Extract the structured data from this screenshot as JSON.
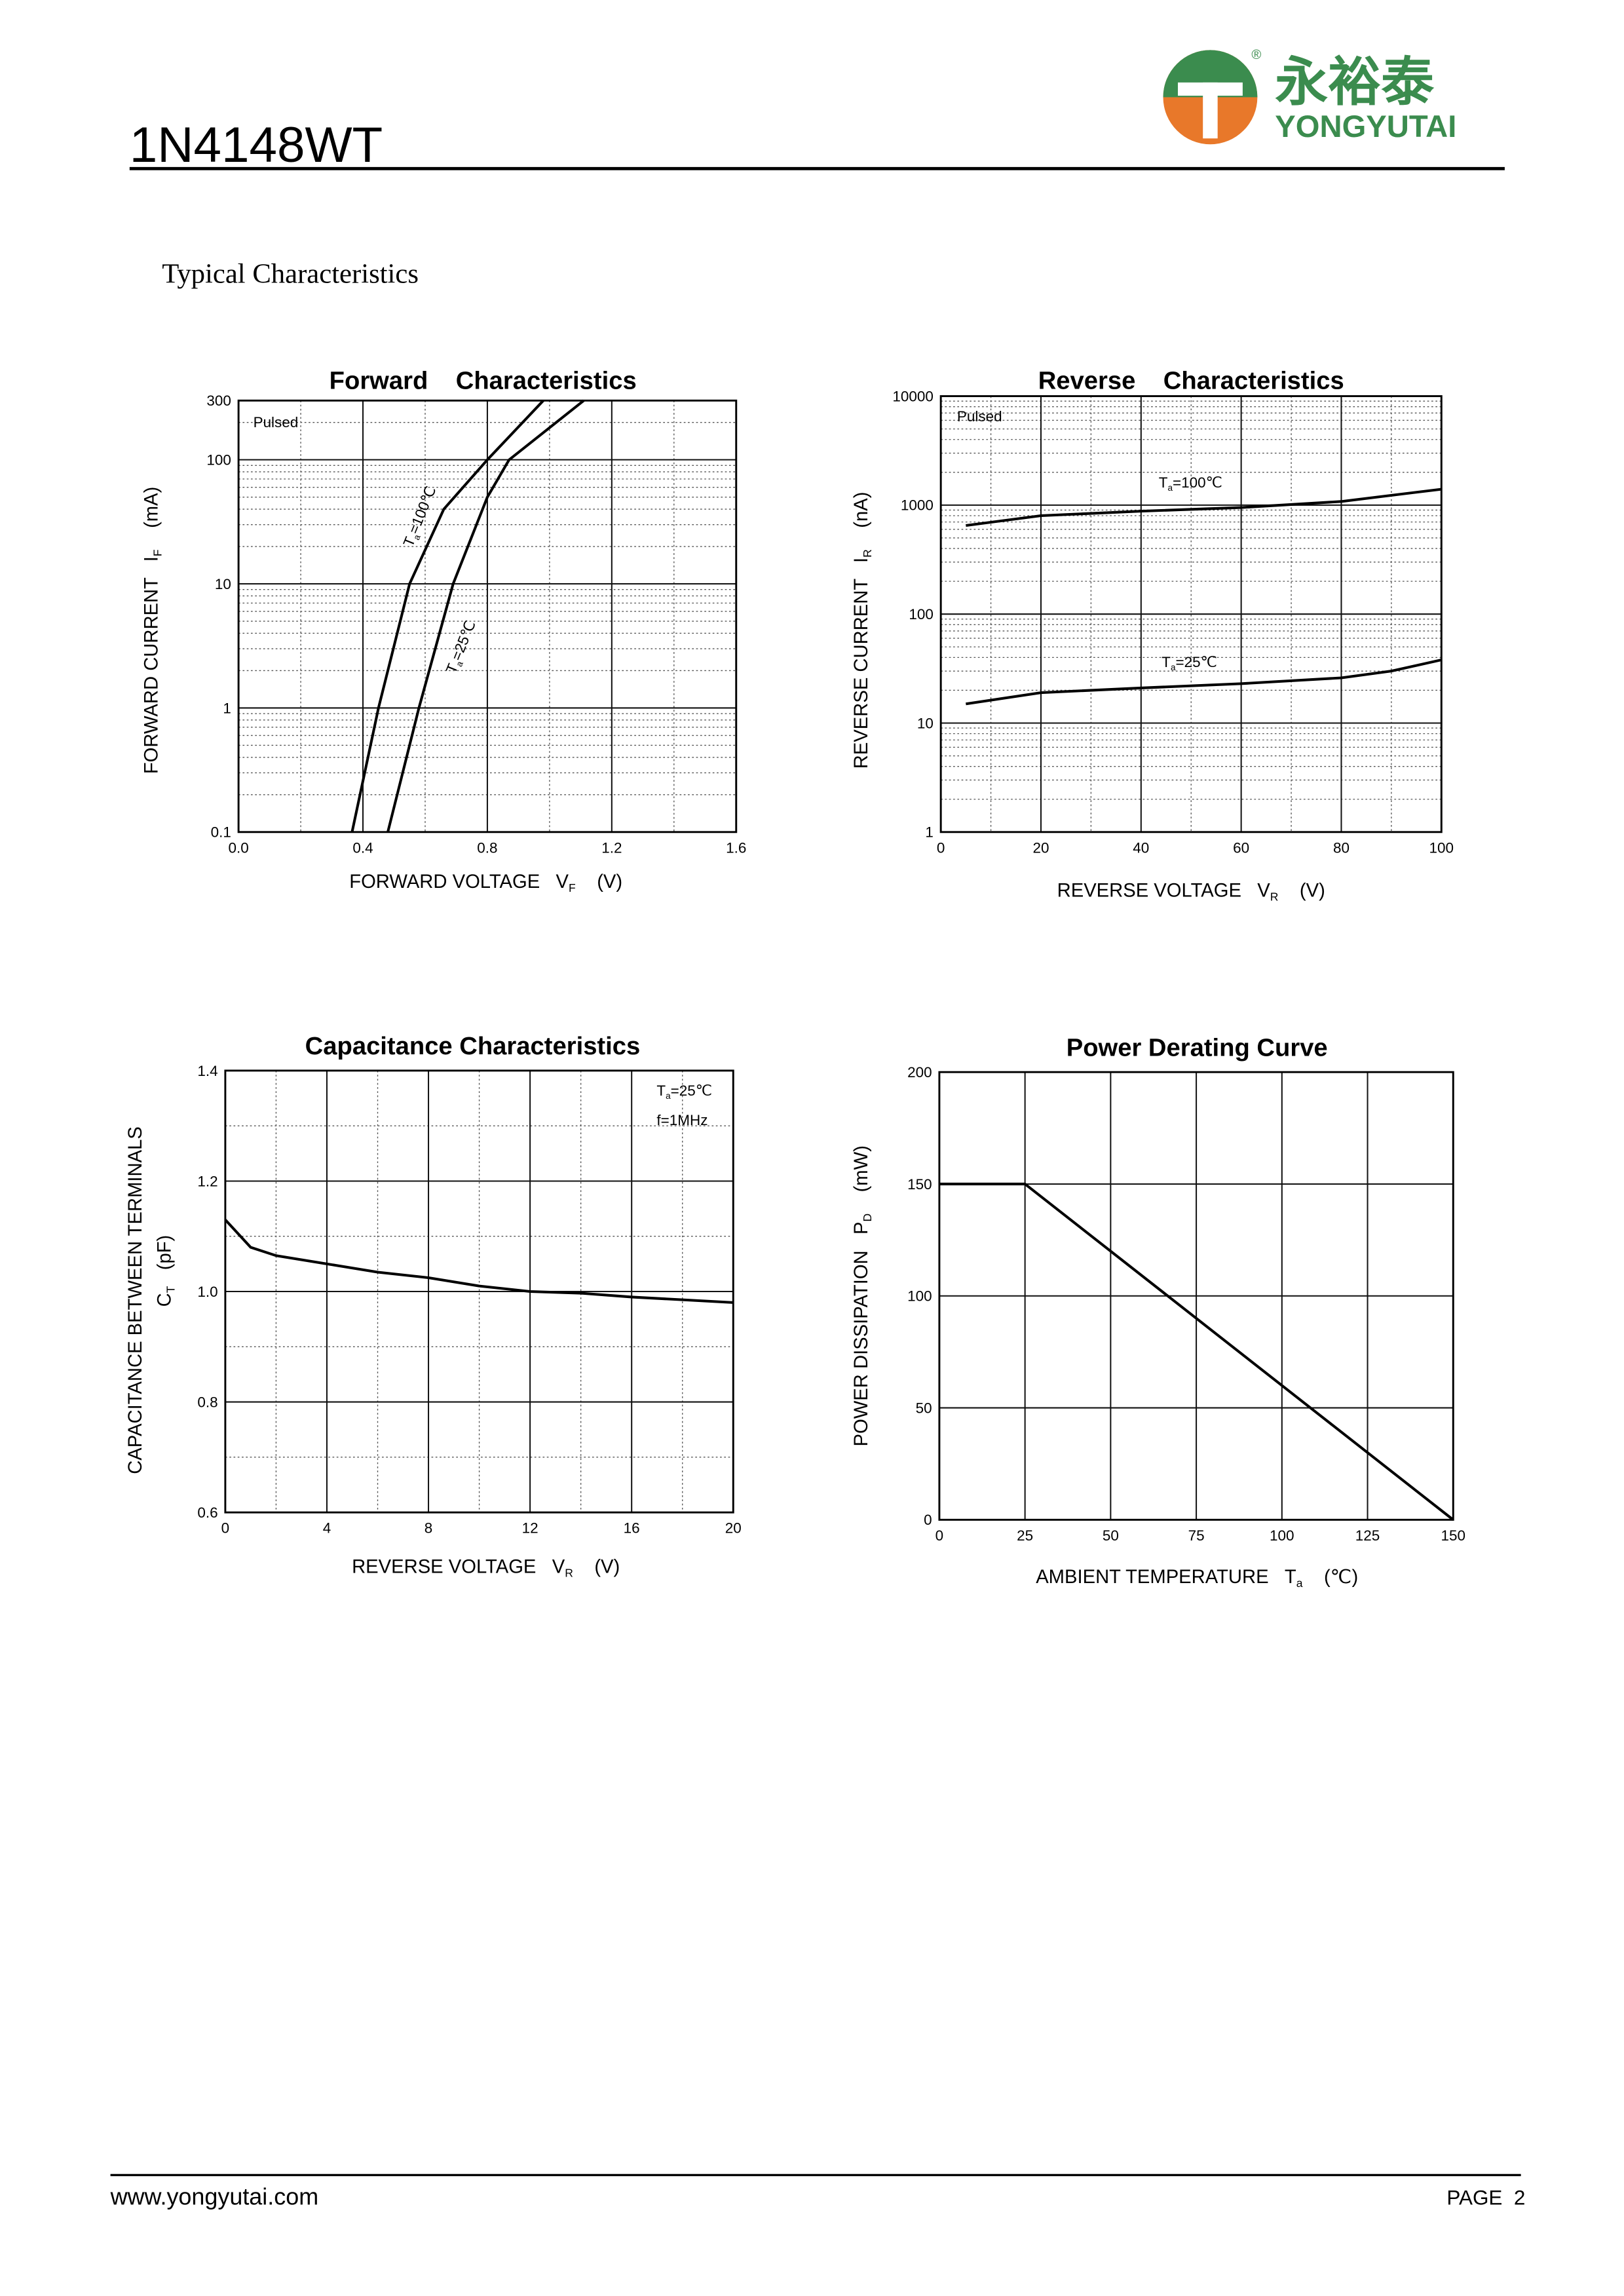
{
  "header": {
    "part": "1N4148WT",
    "brand_cn": "永裕泰",
    "brand_en": "YONGYUTAI",
    "reg": "®"
  },
  "section_title": "Typical Characteristics",
  "chart_data": [
    {
      "type": "line",
      "title": "Forward    Characteristics",
      "x_label": {
        "text": "FORWARD VOLTAGE   ",
        "symbol": "V",
        "sub": "F",
        "unit": "    (V)"
      },
      "y_label": {
        "text": "FORWARD CURRENT   ",
        "symbol": "I",
        "sub": "F",
        "unit": "    (mA)"
      },
      "xlim": [
        0,
        1.6
      ],
      "xticks": [
        {
          "value": 0,
          "label": "0.0"
        },
        0.4,
        0.8,
        1.2,
        1.6
      ],
      "ylim": [
        0.1,
        300
      ],
      "yticks": [
        0.1,
        1,
        10,
        100,
        300
      ],
      "ylog": true,
      "grid": true,
      "minor_grid": true,
      "annotations": [
        {
          "text": "Pulsed"
        },
        {
          "symbol": "T",
          "sub": "a",
          "text": "=100℃"
        },
        {
          "symbol": "T",
          "sub": "a",
          "text": "=25℃"
        }
      ],
      "series": [
        {
          "name": "Ta=100℃",
          "color": "#000000",
          "x": [
            0.365,
            0.45,
            0.55,
            0.66,
            0.8,
            0.98
          ],
          "values": [
            0.1,
            1,
            10,
            40,
            100,
            300
          ]
        },
        {
          "name": "Ta=25℃",
          "color": "#000000",
          "x": [
            0.48,
            0.58,
            0.69,
            0.8,
            0.87,
            1.11
          ],
          "values": [
            0.1,
            1,
            10,
            50,
            100,
            300
          ]
        }
      ]
    },
    {
      "type": "line",
      "title": "Reverse    Characteristics",
      "x_label": {
        "text": "REVERSE VOLTAGE   ",
        "symbol": "V",
        "sub": "R",
        "unit": "    (V)"
      },
      "y_label": {
        "text": "REVERSE CURRENT   ",
        "symbol": "I",
        "sub": "R",
        "unit": "    (nA)"
      },
      "xlim": [
        0,
        100
      ],
      "xticks": [
        0,
        20,
        40,
        60,
        80,
        100
      ],
      "ylim": [
        1,
        10000
      ],
      "yticks": [
        1,
        10,
        100,
        1000,
        10000
      ],
      "ylog": true,
      "grid": true,
      "minor_grid": true,
      "annotations": [
        {
          "text": "Pulsed"
        },
        {
          "symbol": "T",
          "sub": "a",
          "text": "=100℃"
        },
        {
          "symbol": "T",
          "sub": "a",
          "text": "=25℃"
        }
      ],
      "series": [
        {
          "name": "Ta=100℃",
          "color": "#000000",
          "x": [
            5,
            20,
            40,
            60,
            80,
            100
          ],
          "values": [
            650,
            800,
            880,
            950,
            1080,
            1400
          ]
        },
        {
          "name": "Ta=25℃",
          "color": "#000000",
          "x": [
            5,
            20,
            40,
            60,
            80,
            90,
            100
          ],
          "values": [
            15,
            19,
            21,
            23,
            26,
            30,
            38
          ]
        }
      ]
    },
    {
      "type": "line",
      "title": "Capacitance Characteristics",
      "x_label": {
        "text": "REVERSE VOLTAGE   ",
        "symbol": "V",
        "sub": "R",
        "unit": "    (V)"
      },
      "y_label": {
        "text": "CAPACITANCE BETWEEN TERMINALS",
        "symbol": "C",
        "sub": "T",
        "unit": "   (pF)"
      },
      "xlim": [
        0,
        20
      ],
      "xticks": [
        0,
        4,
        8,
        12,
        16,
        20
      ],
      "ylim": [
        0.6,
        1.4
      ],
      "yticks": [
        0.6,
        0.8,
        {
          "value": 1,
          "label": "1.0"
        },
        1.2,
        1.4
      ],
      "ylog": false,
      "grid": true,
      "minor_grid": true,
      "annotations": [
        {
          "symbol": "T",
          "sub": "a",
          "text": "=25℃"
        },
        {
          "text": "f=1MHz"
        }
      ],
      "series": [
        {
          "name": "CT",
          "color": "#000000",
          "x": [
            0,
            1,
            2,
            4,
            6,
            8,
            10,
            12,
            14,
            16,
            18,
            20
          ],
          "values": [
            1.13,
            1.08,
            1.065,
            1.05,
            1.035,
            1.025,
            1.01,
            1.0,
            0.997,
            0.99,
            0.985,
            0.98
          ]
        }
      ]
    },
    {
      "type": "line",
      "title": "Power Derating Curve",
      "x_label": {
        "text": "AMBIENT TEMPERATURE   ",
        "symbol": "T",
        "sub": "a",
        "unit": "    (℃)"
      },
      "y_label": {
        "text": "POWER DISSIPATION   ",
        "symbol": "P",
        "sub": "D",
        "unit": "    (mW)"
      },
      "xlim": [
        0,
        150
      ],
      "xticks": [
        0,
        25,
        50,
        75,
        100,
        125,
        150
      ],
      "ylim": [
        0,
        200
      ],
      "yticks": [
        0,
        50,
        100,
        150,
        200
      ],
      "ylog": false,
      "grid": true,
      "minor_grid": false,
      "annotations": [],
      "series": [
        {
          "name": "PD",
          "color": "#000000",
          "x": [
            0,
            25,
            150
          ],
          "values": [
            150,
            150,
            0
          ]
        }
      ]
    }
  ],
  "footer": {
    "url": "www.yongyutai.com",
    "page": "PAGE  2"
  }
}
